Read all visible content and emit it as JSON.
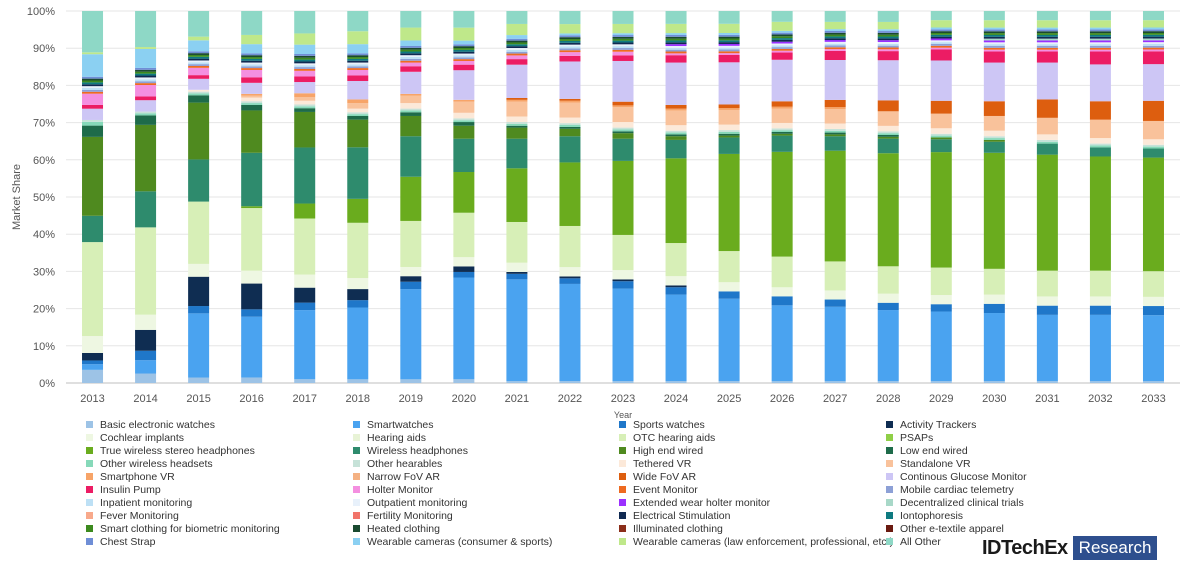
{
  "chart_data": {
    "type": "bar",
    "stacked": true,
    "percent_stacked": true,
    "title": "",
    "xlabel": "Year",
    "ylabel": "Market Share",
    "ylim": [
      0,
      100
    ],
    "y_ticks": [
      "0%",
      "10%",
      "20%",
      "30%",
      "40%",
      "50%",
      "60%",
      "70%",
      "80%",
      "90%",
      "100%"
    ],
    "grid": true,
    "legend_position": "bottom",
    "categories": [
      "2013",
      "2014",
      "2015",
      "2016",
      "2017",
      "2018",
      "2019",
      "2020",
      "2021",
      "2022",
      "2023",
      "2024",
      "2025",
      "2026",
      "2027",
      "2028",
      "2029",
      "2030",
      "2031",
      "2032",
      "2033"
    ],
    "series": [
      {
        "name": "Basic electronic watches",
        "color": "#9dc3e6",
        "values": [
          3.5,
          2.5,
          1.5,
          1.5,
          1,
          1,
          1,
          1,
          0.5,
          0.5,
          0.5,
          0.5,
          0.5,
          0.5,
          0.5,
          0.5,
          0.5,
          0.5,
          0.5,
          0.5,
          0.5
        ]
      },
      {
        "name": "Smartwatches",
        "color": "#4aa3f0",
        "values": [
          1.5,
          3.5,
          17.5,
          16.5,
          18.5,
          19.5,
          24.5,
          27.5,
          27.5,
          26,
          25,
          23.5,
          22.5,
          21,
          20.5,
          19.5,
          19,
          18.5,
          18,
          18,
          18
        ]
      },
      {
        "name": "Sports watches",
        "color": "#1f77c9",
        "values": [
          1,
          2.5,
          2,
          2,
          2,
          2,
          2,
          1.5,
          1.5,
          1.5,
          2,
          2,
          2,
          2.5,
          2,
          2,
          2,
          2.5,
          2.5,
          2.5,
          2.5
        ]
      },
      {
        "name": "Activity Trackers",
        "color": "#0f2d52",
        "values": [
          2,
          5.5,
          8,
          7,
          4,
          3,
          1.5,
          1.5,
          0.5,
          0.5,
          0.5,
          0.5,
          0,
          0,
          0,
          0,
          0,
          0,
          0,
          0,
          0
        ]
      },
      {
        "name": "Cochlear implants",
        "color": "#eef7e2",
        "values": [
          4.5,
          4,
          3.5,
          3.5,
          3.5,
          3,
          2.5,
          2.5,
          2.5,
          2.5,
          2.5,
          2.5,
          2.5,
          2.5,
          2.5,
          2.5,
          2.5,
          2.5,
          2.5,
          2.5,
          2.5
        ]
      },
      {
        "name": "Hearing aids",
        "color": "#e8f3d6",
        "values": [
          0,
          0,
          0,
          0,
          0,
          0,
          0,
          0,
          0,
          0,
          0,
          0,
          0,
          0,
          0,
          0,
          0,
          0,
          0,
          0,
          0
        ]
      },
      {
        "name": "OTC hearing aids",
        "color": "#d7efb7",
        "values": [
          25,
          23,
          17,
          17,
          15,
          15,
          12.5,
          12,
          11,
          11,
          9.5,
          9,
          8.5,
          8.5,
          8,
          7.5,
          7.5,
          7,
          7,
          7,
          7
        ]
      },
      {
        "name": "PSAPs",
        "color": "#8fcf47",
        "values": [
          0,
          0,
          0,
          0,
          0,
          0,
          0,
          0,
          0,
          0,
          0,
          0,
          0,
          0,
          0,
          0,
          0,
          0,
          0,
          0,
          0
        ]
      },
      {
        "name": "True wireless stereo headphones",
        "color": "#6aac1e",
        "values": [
          0,
          0,
          0,
          0.5,
          4,
          6.5,
          12,
          11,
          14.5,
          17,
          20,
          23,
          26.5,
          29,
          30.5,
          31,
          31.5,
          31.5,
          31.5,
          31,
          31
        ]
      },
      {
        "name": "Wireless headphones",
        "color": "#2e8b6d",
        "values": [
          7,
          9.5,
          11.5,
          14.5,
          15,
          14,
          11,
          9,
          8,
          7,
          6,
          5,
          4.5,
          4.5,
          4,
          4,
          3.5,
          3,
          3,
          2.5,
          2.5
        ]
      },
      {
        "name": "High end wired",
        "color": "#4f8a1f",
        "values": [
          21,
          17.5,
          15.5,
          11.5,
          9.5,
          7.5,
          5.5,
          3.5,
          3,
          2,
          1.5,
          1,
          0.5,
          0.5,
          0.5,
          0.5,
          0.5,
          0.5,
          0,
          0,
          0
        ]
      },
      {
        "name": "Low end wired",
        "color": "#1e6b4a",
        "values": [
          3,
          2.5,
          2,
          1.5,
          1,
          1,
          1,
          1,
          0.5,
          0.5,
          0.5,
          0.5,
          0.5,
          0.5,
          0.5,
          0.5,
          0,
          0,
          0,
          0,
          0
        ]
      },
      {
        "name": "Other wireless headsets",
        "color": "#86d9b9",
        "values": [
          1,
          0.5,
          0.5,
          0.5,
          0.5,
          0.5,
          0.5,
          0.5,
          0.5,
          0.5,
          0.5,
          0.5,
          0.5,
          0.5,
          0.5,
          0.5,
          0.5,
          0.5,
          0.5,
          0.5,
          0.5
        ]
      },
      {
        "name": "Other hearables",
        "color": "#c6e2d8",
        "values": [
          0.5,
          0.5,
          0.5,
          0.5,
          0.5,
          0.5,
          0.5,
          0.5,
          0.5,
          0.5,
          0.5,
          0.5,
          0.5,
          0.5,
          0.5,
          0.5,
          0.5,
          0.5,
          0.5,
          0.5,
          0.5
        ]
      },
      {
        "name": "Tethered VR",
        "color": "#fce9d9",
        "values": [
          0,
          0,
          0.5,
          1,
          1,
          1,
          1.5,
          1.5,
          1.5,
          1.5,
          1.5,
          1.5,
          1.5,
          1.5,
          1.5,
          1.5,
          1.5,
          1.5,
          1.5,
          1.5,
          1.5
        ]
      },
      {
        "name": "Standalone VR",
        "color": "#f9c29b",
        "values": [
          0,
          0,
          0,
          0.5,
          1,
          1.5,
          2,
          3,
          4,
          4,
          4,
          4,
          4,
          4,
          4,
          4,
          4,
          4,
          4.5,
          5,
          5
        ]
      },
      {
        "name": "Smartphone VR",
        "color": "#f7a468",
        "values": [
          0,
          0,
          0,
          0.5,
          1,
          1,
          0.5,
          0.5,
          0.5,
          0.5,
          0.5,
          0.5,
          0.5,
          0.5,
          0.5,
          0,
          0,
          0,
          0,
          0,
          0
        ]
      },
      {
        "name": "Narrow FoV AR",
        "color": "#f4b183",
        "values": [
          0,
          0,
          0,
          0,
          0,
          0,
          0,
          0,
          0,
          0,
          0,
          0,
          0,
          0,
          0,
          0,
          0,
          0,
          0,
          0,
          0
        ]
      },
      {
        "name": "Wide FoV AR",
        "color": "#dd5e0f",
        "values": [
          0,
          0,
          0,
          0,
          0,
          0,
          0,
          0,
          0.5,
          0.5,
          1,
          1,
          1,
          1.5,
          2,
          3,
          3.5,
          4,
          5,
          5,
          5.5
        ]
      },
      {
        "name": "Continous Glucose Monitor",
        "color": "#cdc6f5",
        "values": [
          3,
          3,
          3,
          3,
          3,
          5,
          6,
          8,
          9,
          10,
          11,
          11.5,
          11.5,
          11.5,
          11,
          11,
          11,
          10.5,
          10,
          10,
          10
        ]
      },
      {
        "name": "Insulin Pump",
        "color": "#ec1c64",
        "values": [
          1,
          1,
          1,
          1.5,
          1.5,
          1.5,
          1.5,
          1.5,
          1.5,
          1.5,
          1.5,
          2,
          2,
          2,
          2.5,
          2.5,
          3,
          3,
          3,
          3.5,
          3.5
        ]
      },
      {
        "name": "Holter Monitor",
        "color": "#f48fe0",
        "values": [
          3,
          3,
          2,
          2,
          1.5,
          1.5,
          1,
          1,
          1,
          1,
          1,
          0.5,
          0.5,
          0.5,
          0.5,
          0.5,
          0.5,
          0.5,
          0.5,
          0.5,
          0.5
        ]
      },
      {
        "name": "Event Monitor",
        "color": "#ee6a20",
        "values": [
          0.5,
          0.5,
          0.5,
          0.5,
          0.5,
          0.5,
          0.5,
          0.5,
          0.5,
          0.5,
          0.5,
          0.5,
          0.5,
          0.5,
          0.5,
          0.5,
          0.5,
          0.5,
          0.5,
          0.5,
          0.5
        ]
      },
      {
        "name": "Mobile cardiac telemetry",
        "color": "#8da0d6",
        "values": [
          0.5,
          0.5,
          0.5,
          0.5,
          0.5,
          0.5,
          0.5,
          0.5,
          0.5,
          0.5,
          0.5,
          0.5,
          0.5,
          0.5,
          0.5,
          0.5,
          0.5,
          0.5,
          0.5,
          0.5,
          0.5
        ]
      },
      {
        "name": "Inpatient monitoring",
        "color": "#bde0f5",
        "values": [
          0.5,
          0.5,
          0.5,
          0.5,
          0.5,
          0.5,
          0.5,
          0.5,
          0.5,
          0.5,
          0.5,
          0.5,
          0.5,
          0.5,
          0.5,
          0.5,
          0.5,
          0.5,
          0.5,
          0.5,
          0.5
        ]
      },
      {
        "name": "Outpatient monitoring",
        "color": "#e8f1fb",
        "values": [
          0.5,
          0.5,
          0.5,
          0.5,
          0.5,
          0.5,
          0.5,
          0.5,
          0.5,
          0.5,
          0.5,
          0.5,
          0.5,
          0.5,
          0.5,
          0.5,
          0.5,
          0.5,
          0.5,
          0.5,
          0.5
        ]
      },
      {
        "name": "Extended wear holter monitor",
        "color": "#9b30ff",
        "values": [
          0,
          0,
          0,
          0,
          0,
          0,
          0,
          0,
          0,
          0,
          0,
          0.5,
          0.5,
          0.5,
          0.5,
          0.5,
          0.5,
          0.5,
          0.5,
          0.5,
          0.5
        ]
      },
      {
        "name": "Decentralized clinical trials",
        "color": "#a8d8c8",
        "values": [
          0,
          0,
          0,
          0,
          0,
          0,
          0,
          0,
          0,
          0,
          0,
          0,
          0,
          0,
          0,
          0,
          0,
          0.5,
          0.5,
          0.5,
          0.5
        ]
      },
      {
        "name": "Fever Monitoring",
        "color": "#f8a98b",
        "values": [
          0,
          0,
          0,
          0,
          0,
          0,
          0,
          0,
          0,
          0,
          0,
          0,
          0,
          0,
          0,
          0,
          0,
          0,
          0,
          0,
          0
        ]
      },
      {
        "name": "Fertility Monitoring",
        "color": "#f1746a",
        "values": [
          0,
          0,
          0,
          0,
          0,
          0,
          0,
          0,
          0,
          0,
          0,
          0,
          0,
          0,
          0,
          0,
          0,
          0,
          0,
          0,
          0
        ]
      },
      {
        "name": "Electrical Stimulation",
        "color": "#102a52",
        "values": [
          0.5,
          0.5,
          0.5,
          0.5,
          0.5,
          0.5,
          0.5,
          0.5,
          0.5,
          0.5,
          0.5,
          0.5,
          0.5,
          0.5,
          0.5,
          0.5,
          0.5,
          0.5,
          0.5,
          0.5,
          0.5
        ]
      },
      {
        "name": "Iontophoresis",
        "color": "#0e7a80",
        "values": [
          0.5,
          0.5,
          0.5,
          0.5,
          0.5,
          0.5,
          0.5,
          0.5,
          0.5,
          0.5,
          0.5,
          0.5,
          0.5,
          0.5,
          0.5,
          0.5,
          0.5,
          0.5,
          0.5,
          0.5,
          0.5
        ]
      },
      {
        "name": "Smart clothing for biometric monitoring",
        "color": "#3c8a1e",
        "values": [
          0.5,
          0.5,
          0.5,
          0.5,
          0.5,
          0.5,
          0.5,
          0.5,
          0.5,
          0.5,
          0.5,
          0.5,
          0.5,
          0.5,
          0.5,
          0.5,
          0.5,
          0.5,
          0.5,
          0.5,
          0.5
        ]
      },
      {
        "name": "Heated clothing",
        "color": "#1a4a30",
        "values": [
          0.5,
          0.5,
          0.5,
          0.5,
          0.5,
          0.5,
          0.5,
          0.5,
          0.5,
          0.5,
          0.5,
          0.5,
          0.5,
          0.5,
          0.5,
          0.5,
          0.5,
          0.5,
          0.5,
          0.5,
          0.5
        ]
      },
      {
        "name": "Illuminated clothing",
        "color": "#8b2e1a",
        "values": [
          0,
          0,
          0,
          0,
          0,
          0,
          0,
          0,
          0,
          0,
          0,
          0,
          0,
          0,
          0,
          0,
          0,
          0,
          0,
          0,
          0
        ]
      },
      {
        "name": "Other e-textile apparel",
        "color": "#6a1a10",
        "values": [
          0,
          0,
          0,
          0,
          0,
          0,
          0,
          0,
          0,
          0,
          0,
          0,
          0,
          0,
          0,
          0,
          0,
          0,
          0,
          0,
          0
        ]
      },
      {
        "name": "Chest Strap",
        "color": "#6f8ed6",
        "values": [
          0.5,
          0.5,
          0.5,
          0.5,
          0.5,
          0.5,
          0.5,
          0.5,
          0.5,
          0.5,
          0.5,
          0.5,
          0.5,
          0.5,
          0.5,
          0.5,
          0.5,
          0.5,
          0.5,
          0.5,
          0.5
        ]
      },
      {
        "name": "Wearable cameras (consumer & sports)",
        "color": "#8bd0f2",
        "values": [
          6,
          5,
          3,
          2.5,
          2.5,
          2.5,
          1.5,
          1,
          1,
          0.5,
          0.5,
          0.5,
          0.5,
          0.5,
          0.5,
          0.5,
          0.5,
          0.5,
          0.5,
          0.5,
          0.5
        ]
      },
      {
        "name": "Wearable cameras (law enforcement, professional, etc.)",
        "color": "#bfe88a",
        "values": [
          0.5,
          0.5,
          1,
          2.5,
          3,
          3.5,
          3.5,
          3.5,
          3,
          2.5,
          2.5,
          2.5,
          2.5,
          2.5,
          2,
          2,
          2,
          2,
          2,
          2,
          2
        ]
      },
      {
        "name": "All Other",
        "color": "#8ed8c6",
        "values": [
          11,
          9.5,
          7,
          6.5,
          6,
          5.5,
          4.5,
          4.5,
          3.5,
          3.5,
          3.5,
          3.5,
          3.5,
          3,
          3,
          3,
          2.5,
          2.5,
          2.5,
          2.5,
          2.5
        ]
      }
    ]
  },
  "brand": {
    "name": "IDTechEx",
    "badge": "Research"
  }
}
